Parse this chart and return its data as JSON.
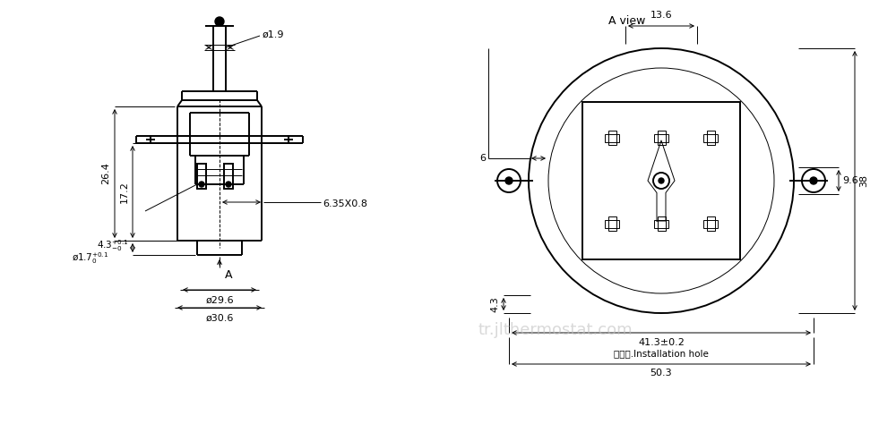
{
  "bg_color": "#ffffff",
  "line_color": "#000000",
  "watermark_text": "tr.jlthermostat.com",
  "a_view_label": "A view",
  "a_label": "A",
  "phi1_9": "ø1.9",
  "dim26_4": "26.4",
  "dim17_2": "17.2",
  "dim4_3_left": "4.3",
  "phi1_7": "ø1.7",
  "phi29_6": "ø29.6",
  "phi30_6": "ø30.6",
  "dim6_35": "6.35X0.8",
  "dim13_6": "13.6",
  "dim6": "6",
  "dim4_3_right": "4.3",
  "dim41_3": "41.3±0.2",
  "dim9_6": "9.6",
  "dim38": "38",
  "install": "安装孔.Installation hole",
  "dim50_3": "50.3"
}
